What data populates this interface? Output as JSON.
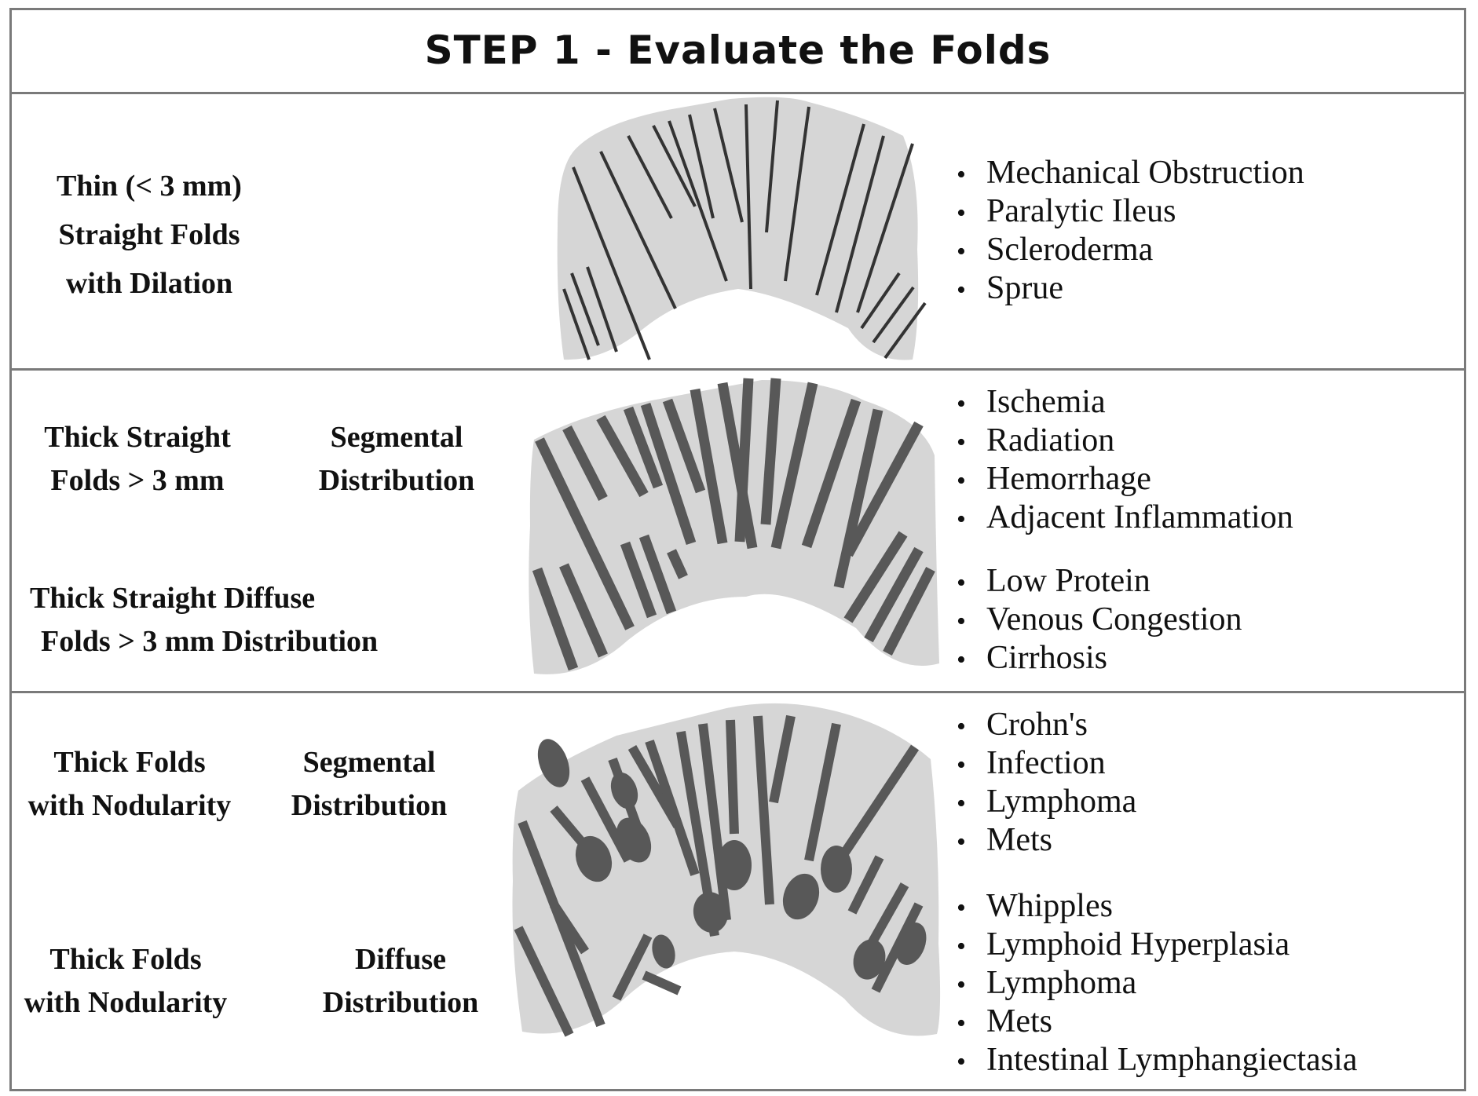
{
  "title": "STEP 1 - Evaluate the Folds",
  "colors": {
    "fold_bg": "#d6d6d6",
    "thin_line": "#333333",
    "thick_fold": "#585858",
    "border": "#7a7a7a"
  },
  "rows": [
    {
      "label_lines": [
        "Thin (< 3 mm)",
        "Straight Folds",
        "with Dilation"
      ],
      "items": [
        "Mechanical Obstruction",
        "Paralytic Ileus",
        "Scleroderma",
        "Sprue"
      ]
    },
    {
      "segmental": {
        "label_lines": [
          "Thick Straight",
          "Folds > 3 mm"
        ],
        "distribution_lines": [
          "Segmental",
          "Distribution"
        ],
        "items": [
          "Ischemia",
          "Radiation",
          "Hemorrhage",
          "Adjacent Inflammation"
        ]
      },
      "diffuse": {
        "label_lines": [
          "Thick Straight Diffuse",
          "Folds > 3 mm Distribution"
        ],
        "items": [
          "Low Protein",
          "Venous Congestion",
          "Cirrhosis"
        ]
      }
    },
    {
      "segmental": {
        "label_lines": [
          "Thick Folds",
          "with Nodularity"
        ],
        "distribution_lines": [
          "Segmental",
          "Distribution"
        ],
        "items": [
          "Crohn's",
          "Infection",
          "Lymphoma",
          "Mets"
        ]
      },
      "diffuse": {
        "label_lines": [
          "Thick Folds",
          "with Nodularity"
        ],
        "distribution_lines": [
          "Diffuse",
          "Distribution"
        ],
        "items": [
          "Whipples",
          "Lymphoid Hyperplasia",
          "Lymphoma",
          "Mets",
          "Intestinal Lymphangiectasia"
        ]
      }
    }
  ]
}
